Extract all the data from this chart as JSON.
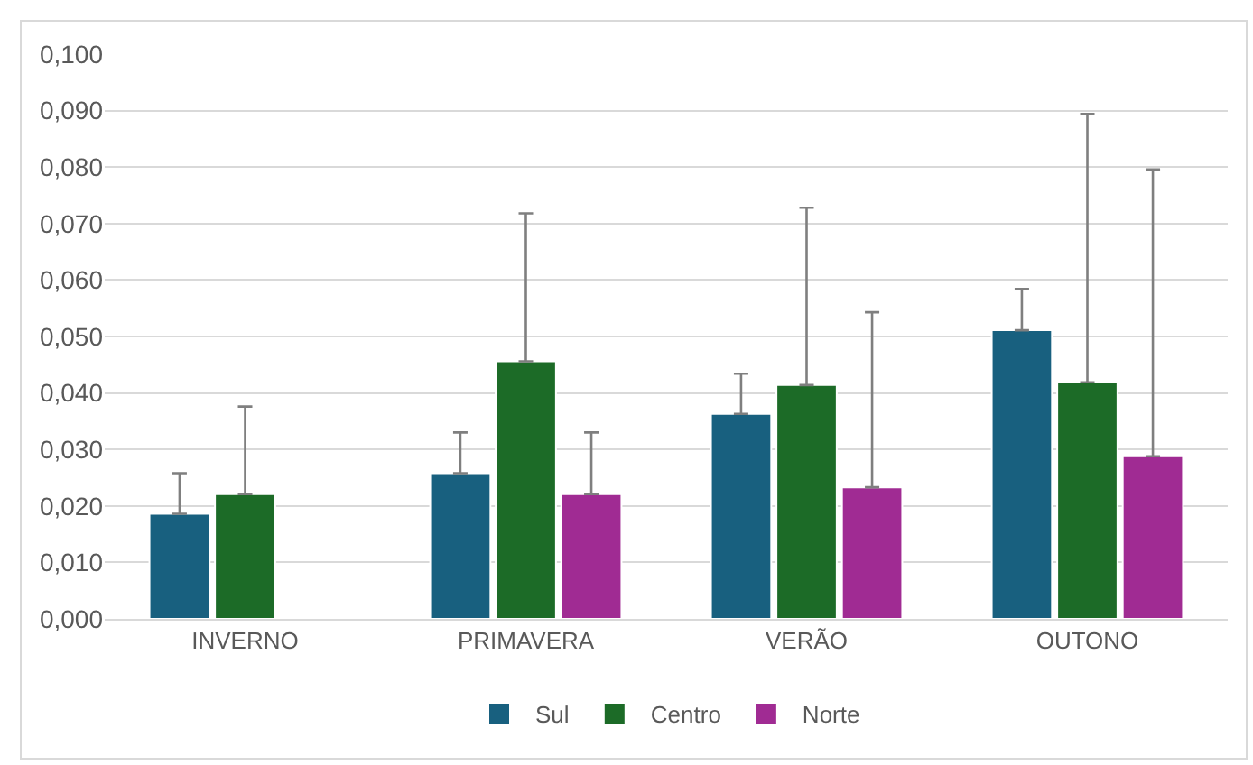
{
  "chart_data": {
    "type": "bar",
    "categories": [
      "INVERNO",
      "PRIMAVERA",
      "VERÃO",
      "OUTONO"
    ],
    "series": [
      {
        "name": "Sul",
        "color": "#18607f",
        "values": [
          0.0186,
          0.0258,
          0.0363,
          0.0511
        ],
        "errors": [
          [
            0.0186,
            0.0258
          ],
          [
            0.0258,
            0.033
          ],
          [
            0.0363,
            0.0434
          ],
          [
            0.0511,
            0.0584
          ]
        ]
      },
      {
        "name": "Centro",
        "color": "#1c6b27",
        "values": [
          0.0221,
          0.0456,
          0.0414,
          0.0419
        ],
        "errors": [
          [
            0.0221,
            0.0376
          ],
          [
            0.0456,
            0.0718
          ],
          [
            0.0414,
            0.0728
          ],
          [
            0.0419,
            0.0894
          ]
        ]
      },
      {
        "name": "Norte",
        "color": "#a02b93",
        "values": [
          null,
          0.0221,
          0.0233,
          0.0288
        ],
        "errors": [
          null,
          [
            0.0221,
            0.033
          ],
          [
            0.0233,
            0.0543
          ],
          [
            0.0288,
            0.0796
          ]
        ]
      }
    ],
    "ylim": [
      0,
      0.1
    ],
    "yticks": [
      {
        "value": 0,
        "label": "0,000"
      },
      {
        "value": 0.01,
        "label": "0,010"
      },
      {
        "value": 0.02,
        "label": "0,020"
      },
      {
        "value": 0.03,
        "label": "0,030"
      },
      {
        "value": 0.04,
        "label": "0,040"
      },
      {
        "value": 0.05,
        "label": "0,050"
      },
      {
        "value": 0.06,
        "label": "0,060"
      },
      {
        "value": 0.07,
        "label": "0,070"
      },
      {
        "value": 0.08,
        "label": "0,080"
      },
      {
        "value": 0.09,
        "label": "0,090"
      },
      {
        "value": 0.1,
        "label": "0,100"
      }
    ],
    "grid": "y",
    "legend": "bottom"
  }
}
